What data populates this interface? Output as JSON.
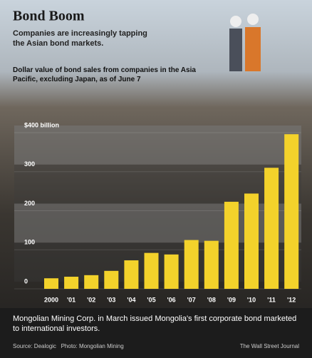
{
  "chart_data": {
    "type": "bar",
    "title": "Bond Boom",
    "subtitle": "Companies are increasingly tapping the Asian bond markets.",
    "description": "Dollar value of bond sales from companies in the Asia Pacific, excluding Japan, as of June 7",
    "caption": "Mongolian Mining Corp. in March issued Mongolia's first corporate bond marketed to international investors.",
    "source": "Source: Dealogic   Photo: Mongolian Mining",
    "credit": "The Wall Street Journal",
    "categories": [
      "2000",
      "'01",
      "'02",
      "'03",
      "'04",
      "'05",
      "'06",
      "'07",
      "'08",
      "'09",
      "'10",
      "'11",
      "'12"
    ],
    "values": [
      27,
      31,
      35,
      46,
      73,
      92,
      88,
      125,
      123,
      223,
      244,
      310,
      396
    ],
    "color": "#f3d22b",
    "ylim": [
      0,
      400
    ],
    "yticks": [
      0,
      100,
      200,
      300,
      {
        "value": 400,
        "label": "$400 billion"
      }
    ]
  }
}
